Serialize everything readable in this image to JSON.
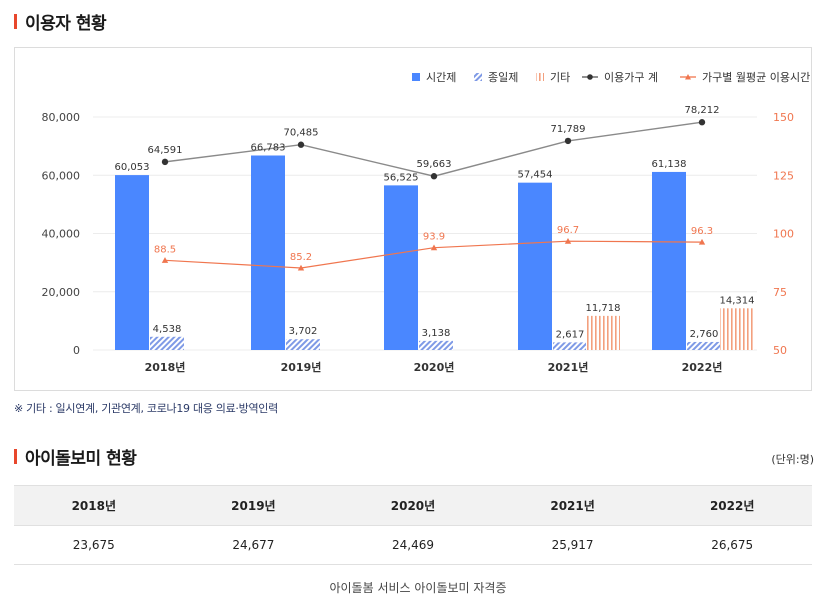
{
  "sections": {
    "usage_title": "이용자 현황",
    "babysitter_title": "아이돌보미 현황"
  },
  "note": "※ 기타 : 일시연계, 기관연계, 코로나19 대응 의료·방역인력",
  "unit": "(단위:명)",
  "colors": {
    "hourly": "#4a87ff",
    "fullday": "#8aa6f0",
    "other": "#f3a07e",
    "households": "#444444",
    "monthly": "#f0764f",
    "accent": "#e8472c"
  },
  "chart_data": {
    "type": "bar+line",
    "categories": [
      "2018년",
      "2019년",
      "2020년",
      "2021년",
      "2022년"
    ],
    "legend": [
      "시간제",
      "종일제",
      "기타",
      "이용가구 계",
      "가구별 월평균 이용시간"
    ],
    "series": [
      {
        "name": "시간제",
        "type": "bar",
        "axis": "left",
        "values": [
          60053,
          66783,
          56525,
          57454,
          61138
        ],
        "labels": [
          "60,053",
          "66,783",
          "56,525",
          "57,454",
          "61,138"
        ]
      },
      {
        "name": "종일제",
        "type": "bar",
        "axis": "left",
        "values": [
          4538,
          3702,
          3138,
          2617,
          2760
        ],
        "labels": [
          "4,538",
          "3,702",
          "3,138",
          "2,617",
          "2,760"
        ]
      },
      {
        "name": "기타",
        "type": "bar",
        "axis": "left",
        "values": [
          null,
          null,
          null,
          11718,
          14314
        ],
        "labels": [
          "",
          "",
          "",
          "11,718",
          "14,314"
        ]
      },
      {
        "name": "이용가구 계",
        "type": "line",
        "axis": "left",
        "values": [
          64591,
          70485,
          59663,
          71789,
          78212
        ],
        "labels": [
          "64,591",
          "70,485",
          "59,663",
          "71,789",
          "78,212"
        ]
      },
      {
        "name": "가구별 월평균 이용시간",
        "type": "line",
        "axis": "right",
        "values": [
          88.5,
          85.2,
          93.9,
          96.7,
          96.3
        ],
        "labels": [
          "88.5",
          "85.2",
          "93.9",
          "96.7",
          "96.3"
        ]
      }
    ],
    "y_left": {
      "min": 0,
      "max": 80000,
      "ticks": [
        0,
        20000,
        40000,
        60000,
        80000
      ],
      "tick_labels": [
        "0",
        "20,000",
        "40,000",
        "60,000",
        "80,000"
      ]
    },
    "y_right": {
      "min": 50,
      "max": 150,
      "ticks": [
        50,
        75,
        100,
        125,
        150
      ],
      "tick_labels": [
        "50",
        "75",
        "100",
        "125",
        "150"
      ]
    },
    "legend_position": "top-right"
  },
  "table": {
    "headers": [
      "2018년",
      "2019년",
      "2020년",
      "2021년",
      "2022년"
    ],
    "values": [
      "23,675",
      "24,677",
      "24,469",
      "25,917",
      "26,675"
    ]
  },
  "footer": "아이돌봄 서비스 아이돌보미 자격증"
}
